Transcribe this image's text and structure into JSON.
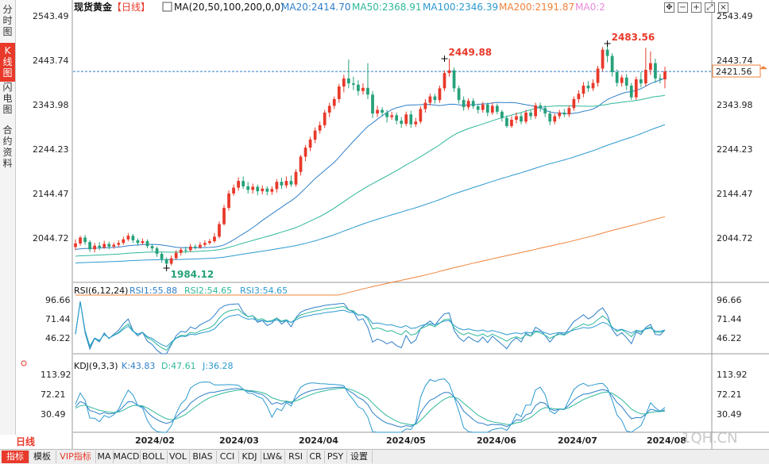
{
  "left_tabs": [
    {
      "id": "fenshi",
      "chars": [
        "分",
        "时",
        "图"
      ],
      "active": false
    },
    {
      "id": "kxian",
      "chars": [
        "K",
        "线",
        "图"
      ],
      "active": true
    },
    {
      "id": "shandian",
      "chars": [
        "闪",
        "电",
        "图"
      ],
      "active": false
    },
    {
      "id": "heyue",
      "chars": [
        "合",
        "约",
        "资",
        "料"
      ],
      "active": false
    }
  ],
  "header": {
    "symbol": "现货黄金",
    "period": "【日线】",
    "ma_label": "MA(20,50,100,200,0,0)",
    "ma20": "MA20:2414.70",
    "ma50": "MA50:2368.91",
    "ma100": "MA100:2346.39",
    "ma200": "MA200:2191.87",
    "ma0": "MA0:2"
  },
  "price_axis": [
    "2543.49",
    "2443.74",
    "2343.98",
    "2244.23",
    "2144.47",
    "2044.72"
  ],
  "price_axis_right": [
    "2543.49",
    "2443.74",
    "2343.98",
    "2244.23",
    "2144.47",
    "2044.72"
  ],
  "current_price": "2421.56",
  "annotations": {
    "high1": "2449.88",
    "high2": "2483.56",
    "low": "1984.12"
  },
  "rsi": {
    "label": "RSI(6,12,24)",
    "rsi1": "RSI1:55.88",
    "rsi2": "RSI2:54.65",
    "rsi3": "RSI3:54.65",
    "axis": [
      "96.66",
      "71.44",
      "46.22"
    ],
    "axis_right": [
      "96.66",
      "71.44",
      "46.22"
    ]
  },
  "kdj": {
    "label": "KDJ(9,3,3)",
    "k": "K:43.83",
    "d": "D:47.61",
    "j": "J:36.28",
    "axis": [
      "113.92",
      "72.21",
      "30.49"
    ],
    "axis_right": [
      "113.92",
      "72.21",
      "30.49"
    ]
  },
  "x_labels": [
    "2024/02",
    "2024/03",
    "2024/04",
    "2024/05",
    "2024/06",
    "2024/07",
    "2024/08"
  ],
  "period_label": "日线",
  "watermark": "1QH.CN",
  "bottom_tabs": [
    "指标",
    "模板",
    "VIP指标",
    "MA",
    "MACD",
    "BOLL",
    "VOL",
    "BIAS",
    "CCI",
    "KDJ",
    "LW&",
    "RSI",
    "CR",
    "PSY",
    "设置"
  ],
  "toolbar_icons": [
    "move-icon",
    "zoom-out-icon",
    "zoom-in-icon",
    "fullscreen-icon",
    "close-icon"
  ],
  "colors": {
    "up": "#e8392a",
    "down": "#26a17a",
    "ma20": "#2f7fc8",
    "ma50": "#2fb89a",
    "ma100": "#2c9ad0",
    "ma200": "#f0823a",
    "accent": "#e8392a"
  },
  "chart_data": {
    "type": "candlestick",
    "price_ylim": [
      1984.12,
      2543.49
    ],
    "candles": [
      {
        "o": 2031,
        "c": 2039,
        "h": 2048,
        "l": 2024
      },
      {
        "o": 2039,
        "c": 2052,
        "h": 2056,
        "l": 2034
      },
      {
        "o": 2052,
        "c": 2042,
        "h": 2058,
        "l": 2036
      },
      {
        "o": 2042,
        "c": 2026,
        "h": 2046,
        "l": 2020
      },
      {
        "o": 2026,
        "c": 2034,
        "h": 2040,
        "l": 2019
      },
      {
        "o": 2034,
        "c": 2030,
        "h": 2042,
        "l": 2024
      },
      {
        "o": 2030,
        "c": 2038,
        "h": 2045,
        "l": 2027
      },
      {
        "o": 2038,
        "c": 2032,
        "h": 2043,
        "l": 2026
      },
      {
        "o": 2032,
        "c": 2036,
        "h": 2041,
        "l": 2027
      },
      {
        "o": 2036,
        "c": 2040,
        "h": 2046,
        "l": 2031
      },
      {
        "o": 2040,
        "c": 2048,
        "h": 2054,
        "l": 2036
      },
      {
        "o": 2048,
        "c": 2056,
        "h": 2062,
        "l": 2044
      },
      {
        "o": 2056,
        "c": 2046,
        "h": 2060,
        "l": 2040
      },
      {
        "o": 2046,
        "c": 2040,
        "h": 2050,
        "l": 2034
      },
      {
        "o": 2040,
        "c": 2044,
        "h": 2050,
        "l": 2036
      },
      {
        "o": 2044,
        "c": 2033,
        "h": 2048,
        "l": 2028
      },
      {
        "o": 2033,
        "c": 2028,
        "h": 2038,
        "l": 2022
      },
      {
        "o": 2028,
        "c": 2016,
        "h": 2032,
        "l": 2009
      },
      {
        "o": 2016,
        "c": 2004,
        "h": 2020,
        "l": 1996
      },
      {
        "o": 2004,
        "c": 1994,
        "h": 2008,
        "l": 1984
      },
      {
        "o": 1994,
        "c": 2006,
        "h": 2012,
        "l": 1990
      },
      {
        "o": 2006,
        "c": 2018,
        "h": 2024,
        "l": 2002
      },
      {
        "o": 2018,
        "c": 2025,
        "h": 2030,
        "l": 2012
      },
      {
        "o": 2025,
        "c": 2024,
        "h": 2032,
        "l": 2017
      },
      {
        "o": 2024,
        "c": 2032,
        "h": 2038,
        "l": 2020
      },
      {
        "o": 2032,
        "c": 2030,
        "h": 2037,
        "l": 2025
      },
      {
        "o": 2030,
        "c": 2036,
        "h": 2042,
        "l": 2027
      },
      {
        "o": 2036,
        "c": 2040,
        "h": 2046,
        "l": 2032
      },
      {
        "o": 2040,
        "c": 2044,
        "h": 2049,
        "l": 2036
      },
      {
        "o": 2044,
        "c": 2054,
        "h": 2062,
        "l": 2040
      },
      {
        "o": 2054,
        "c": 2082,
        "h": 2088,
        "l": 2050
      },
      {
        "o": 2082,
        "c": 2118,
        "h": 2125,
        "l": 2079
      },
      {
        "o": 2118,
        "c": 2150,
        "h": 2157,
        "l": 2112
      },
      {
        "o": 2150,
        "c": 2163,
        "h": 2170,
        "l": 2145
      },
      {
        "o": 2163,
        "c": 2178,
        "h": 2186,
        "l": 2156
      },
      {
        "o": 2178,
        "c": 2166,
        "h": 2188,
        "l": 2160
      },
      {
        "o": 2166,
        "c": 2158,
        "h": 2176,
        "l": 2150
      },
      {
        "o": 2158,
        "c": 2165,
        "h": 2172,
        "l": 2150
      },
      {
        "o": 2165,
        "c": 2155,
        "h": 2170,
        "l": 2146
      },
      {
        "o": 2155,
        "c": 2161,
        "h": 2168,
        "l": 2148
      },
      {
        "o": 2161,
        "c": 2154,
        "h": 2166,
        "l": 2146
      },
      {
        "o": 2154,
        "c": 2160,
        "h": 2166,
        "l": 2147
      },
      {
        "o": 2160,
        "c": 2176,
        "h": 2182,
        "l": 2152
      },
      {
        "o": 2176,
        "c": 2168,
        "h": 2185,
        "l": 2160
      },
      {
        "o": 2168,
        "c": 2178,
        "h": 2188,
        "l": 2162
      },
      {
        "o": 2178,
        "c": 2170,
        "h": 2190,
        "l": 2165
      },
      {
        "o": 2170,
        "c": 2198,
        "h": 2204,
        "l": 2165
      },
      {
        "o": 2198,
        "c": 2232,
        "h": 2236,
        "l": 2190
      },
      {
        "o": 2232,
        "c": 2252,
        "h": 2258,
        "l": 2222
      },
      {
        "o": 2252,
        "c": 2270,
        "h": 2276,
        "l": 2244
      },
      {
        "o": 2270,
        "c": 2290,
        "h": 2297,
        "l": 2262
      },
      {
        "o": 2290,
        "c": 2302,
        "h": 2310,
        "l": 2283
      },
      {
        "o": 2302,
        "c": 2330,
        "h": 2336,
        "l": 2296
      },
      {
        "o": 2330,
        "c": 2345,
        "h": 2352,
        "l": 2320
      },
      {
        "o": 2345,
        "c": 2360,
        "h": 2366,
        "l": 2338
      },
      {
        "o": 2360,
        "c": 2388,
        "h": 2394,
        "l": 2352
      },
      {
        "o": 2388,
        "c": 2406,
        "h": 2414,
        "l": 2375
      },
      {
        "o": 2406,
        "c": 2395,
        "h": 2448,
        "l": 2384
      },
      {
        "o": 2395,
        "c": 2392,
        "h": 2410,
        "l": 2380
      },
      {
        "o": 2392,
        "c": 2378,
        "h": 2402,
        "l": 2368
      },
      {
        "o": 2378,
        "c": 2385,
        "h": 2395,
        "l": 2370
      },
      {
        "o": 2385,
        "c": 2370,
        "h": 2440,
        "l": 2360
      },
      {
        "o": 2370,
        "c": 2328,
        "h": 2378,
        "l": 2318
      },
      {
        "o": 2328,
        "c": 2336,
        "h": 2345,
        "l": 2320
      },
      {
        "o": 2336,
        "c": 2330,
        "h": 2342,
        "l": 2322
      },
      {
        "o": 2330,
        "c": 2320,
        "h": 2336,
        "l": 2308
      },
      {
        "o": 2320,
        "c": 2324,
        "h": 2332,
        "l": 2314
      },
      {
        "o": 2324,
        "c": 2312,
        "h": 2330,
        "l": 2304
      },
      {
        "o": 2312,
        "c": 2305,
        "h": 2320,
        "l": 2296
      },
      {
        "o": 2305,
        "c": 2326,
        "h": 2332,
        "l": 2300
      },
      {
        "o": 2326,
        "c": 2304,
        "h": 2334,
        "l": 2296
      },
      {
        "o": 2304,
        "c": 2310,
        "h": 2318,
        "l": 2298
      },
      {
        "o": 2310,
        "c": 2338,
        "h": 2344,
        "l": 2305
      },
      {
        "o": 2338,
        "c": 2352,
        "h": 2360,
        "l": 2330
      },
      {
        "o": 2352,
        "c": 2366,
        "h": 2372,
        "l": 2346
      },
      {
        "o": 2366,
        "c": 2358,
        "h": 2372,
        "l": 2350
      },
      {
        "o": 2358,
        "c": 2384,
        "h": 2390,
        "l": 2352
      },
      {
        "o": 2384,
        "c": 2418,
        "h": 2424,
        "l": 2378
      },
      {
        "o": 2418,
        "c": 2424,
        "h": 2450,
        "l": 2410
      },
      {
        "o": 2424,
        "c": 2384,
        "h": 2430,
        "l": 2376
      },
      {
        "o": 2384,
        "c": 2358,
        "h": 2390,
        "l": 2350
      },
      {
        "o": 2358,
        "c": 2342,
        "h": 2366,
        "l": 2334
      },
      {
        "o": 2342,
        "c": 2356,
        "h": 2362,
        "l": 2336
      },
      {
        "o": 2356,
        "c": 2344,
        "h": 2362,
        "l": 2338
      },
      {
        "o": 2344,
        "c": 2336,
        "h": 2350,
        "l": 2328
      },
      {
        "o": 2336,
        "c": 2348,
        "h": 2354,
        "l": 2330
      },
      {
        "o": 2348,
        "c": 2330,
        "h": 2352,
        "l": 2322
      },
      {
        "o": 2330,
        "c": 2345,
        "h": 2352,
        "l": 2325
      },
      {
        "o": 2345,
        "c": 2332,
        "h": 2350,
        "l": 2326
      },
      {
        "o": 2332,
        "c": 2318,
        "h": 2336,
        "l": 2310
      },
      {
        "o": 2318,
        "c": 2300,
        "h": 2324,
        "l": 2296
      },
      {
        "o": 2300,
        "c": 2314,
        "h": 2322,
        "l": 2296
      },
      {
        "o": 2314,
        "c": 2322,
        "h": 2330,
        "l": 2306
      },
      {
        "o": 2322,
        "c": 2310,
        "h": 2330,
        "l": 2304
      },
      {
        "o": 2310,
        "c": 2330,
        "h": 2336,
        "l": 2305
      },
      {
        "o": 2330,
        "c": 2322,
        "h": 2336,
        "l": 2314
      },
      {
        "o": 2322,
        "c": 2346,
        "h": 2352,
        "l": 2316
      },
      {
        "o": 2346,
        "c": 2340,
        "h": 2352,
        "l": 2332
      },
      {
        "o": 2340,
        "c": 2328,
        "h": 2346,
        "l": 2320
      },
      {
        "o": 2328,
        "c": 2310,
        "h": 2334,
        "l": 2302
      },
      {
        "o": 2310,
        "c": 2322,
        "h": 2328,
        "l": 2304
      },
      {
        "o": 2322,
        "c": 2330,
        "h": 2336,
        "l": 2316
      },
      {
        "o": 2330,
        "c": 2326,
        "h": 2338,
        "l": 2320
      },
      {
        "o": 2326,
        "c": 2340,
        "h": 2346,
        "l": 2320
      },
      {
        "o": 2340,
        "c": 2360,
        "h": 2366,
        "l": 2334
      },
      {
        "o": 2360,
        "c": 2372,
        "h": 2380,
        "l": 2352
      },
      {
        "o": 2372,
        "c": 2390,
        "h": 2398,
        "l": 2364
      },
      {
        "o": 2390,
        "c": 2384,
        "h": 2400,
        "l": 2376
      },
      {
        "o": 2384,
        "c": 2396,
        "h": 2404,
        "l": 2378
      },
      {
        "o": 2396,
        "c": 2428,
        "h": 2434,
        "l": 2388
      },
      {
        "o": 2428,
        "c": 2470,
        "h": 2476,
        "l": 2422
      },
      {
        "o": 2470,
        "c": 2456,
        "h": 2483,
        "l": 2442
      },
      {
        "o": 2456,
        "c": 2420,
        "h": 2462,
        "l": 2410
      },
      {
        "o": 2420,
        "c": 2396,
        "h": 2426,
        "l": 2388
      },
      {
        "o": 2396,
        "c": 2408,
        "h": 2414,
        "l": 2388
      },
      {
        "o": 2408,
        "c": 2390,
        "h": 2416,
        "l": 2380
      },
      {
        "o": 2390,
        "c": 2364,
        "h": 2396,
        "l": 2358
      },
      {
        "o": 2364,
        "c": 2404,
        "h": 2410,
        "l": 2358
      },
      {
        "o": 2404,
        "c": 2395,
        "h": 2420,
        "l": 2386
      },
      {
        "o": 2395,
        "c": 2425,
        "h": 2474,
        "l": 2388
      },
      {
        "o": 2425,
        "c": 2440,
        "h": 2466,
        "l": 2414
      },
      {
        "o": 2440,
        "c": 2406,
        "h": 2450,
        "l": 2396
      },
      {
        "o": 2406,
        "c": 2404,
        "h": 2416,
        "l": 2395
      },
      {
        "o": 2404,
        "c": 2421.56,
        "h": 2432,
        "l": 2384
      }
    ],
    "ma20_end": 2414.7,
    "ma50_end": 2368.91,
    "ma100_end": 2346.39,
    "ma200_end": 2191.87,
    "rsi_ylim": [
      20,
      110
    ],
    "kdj_ylim": [
      0,
      130
    ],
    "series_names": [
      "RSI1",
      "RSI2",
      "RSI3",
      "K",
      "D",
      "J"
    ]
  }
}
